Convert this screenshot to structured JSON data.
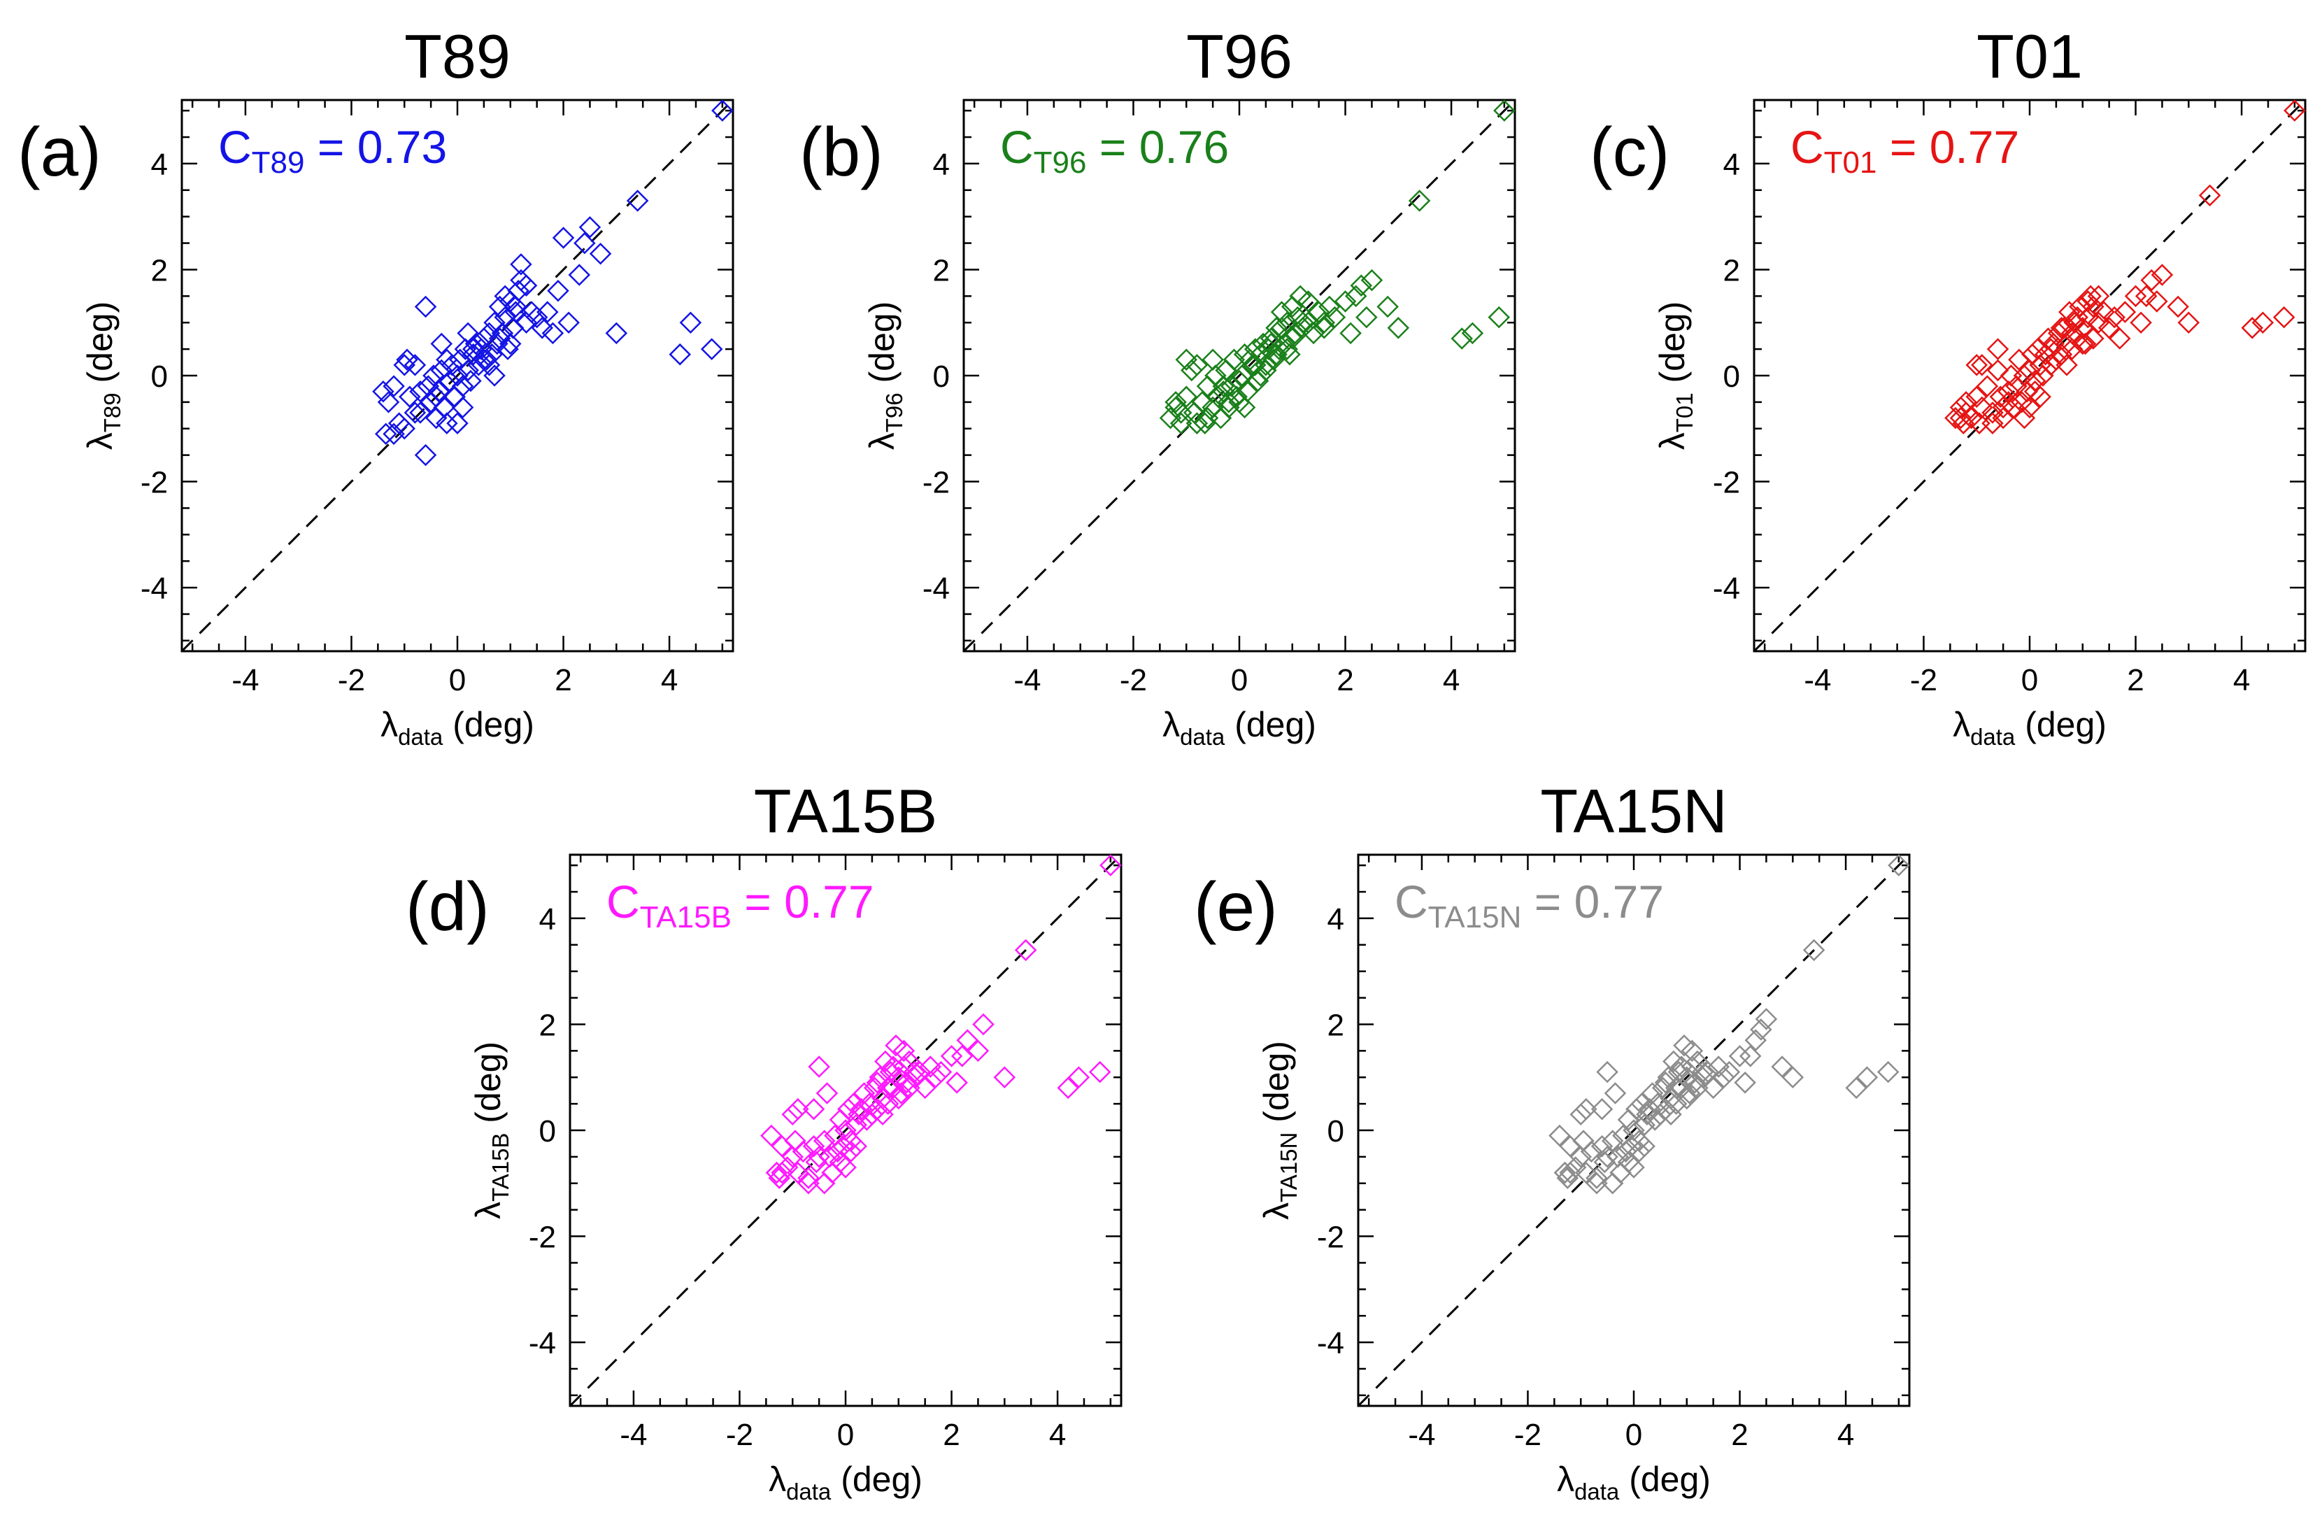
{
  "chart_data": [
    {
      "type": "scatter",
      "panel_label": "(a)",
      "title": "T89",
      "xlabel": "λ",
      "xlabel_sub": "data",
      "xlabel_unit": " (deg)",
      "ylabel": "λ",
      "ylabel_sub": "T89",
      "ylabel_unit": " (deg)",
      "corr_prefix": "C",
      "corr_sub": "T89",
      "corr_value": " = 0.73",
      "color": "#1414e6",
      "xlim": [
        -5.2,
        5.2
      ],
      "ylim": [
        -5.2,
        5.2
      ],
      "ticks": [
        -4,
        -2,
        0,
        2,
        4
      ],
      "diagonal": true,
      "x": [
        -1.4,
        -1.3,
        -1.2,
        -1.1,
        -1.0,
        -0.95,
        -0.9,
        -0.8,
        -0.7,
        -0.6,
        -0.55,
        -0.5,
        -0.45,
        -0.4,
        -0.35,
        -0.3,
        -0.25,
        -0.2,
        -0.15,
        -0.1,
        -0.05,
        0.0,
        0.05,
        0.1,
        0.15,
        0.2,
        0.25,
        0.3,
        0.35,
        0.4,
        0.45,
        0.5,
        0.55,
        0.6,
        0.65,
        0.7,
        0.75,
        0.8,
        0.85,
        0.9,
        0.95,
        1.0,
        1.05,
        1.1,
        1.15,
        1.2,
        1.3,
        1.4,
        1.5,
        1.6,
        1.7,
        1.8,
        2.0,
        2.1,
        2.3,
        2.5,
        2.7,
        3.0,
        3.4,
        4.2,
        4.4,
        4.8,
        5.0,
        -1.2,
        -1.0,
        -0.6,
        -0.4,
        -0.2,
        0.1,
        0.3,
        0.6,
        0.9,
        1.2,
        -0.8,
        -0.3,
        0.2,
        0.7,
        1.0,
        1.3,
        -1.35,
        -0.7,
        0.0,
        0.5,
        0.8,
        1.1,
        1.9,
        2.4
      ],
      "y": [
        -0.3,
        -0.5,
        -1.1,
        -0.9,
        -1.0,
        0.3,
        -0.4,
        0.2,
        -0.7,
        1.3,
        -0.2,
        -0.5,
        0.0,
        -0.8,
        -0.3,
        0.1,
        -0.6,
        0.3,
        -0.1,
        0.2,
        -0.4,
        0.0,
        0.3,
        -0.2,
        0.5,
        0.1,
        -0.1,
        0.4,
        0.6,
        0.2,
        0.5,
        0.7,
        0.3,
        0.8,
        0.4,
        1.0,
        0.6,
        1.3,
        0.8,
        1.1,
        0.5,
        1.4,
        0.9,
        1.2,
        1.6,
        2.1,
        1.0,
        1.2,
        1.1,
        0.9,
        1.2,
        0.8,
        2.6,
        1.0,
        1.9,
        2.8,
        2.3,
        0.8,
        3.3,
        0.4,
        1.0,
        0.5,
        5.0,
        -0.2,
        0.2,
        -1.5,
        -0.4,
        -0.9,
        -0.6,
        0.5,
        0.2,
        1.5,
        1.8,
        -0.7,
        0.6,
        0.8,
        0.0,
        0.6,
        1.7,
        -1.1,
        -0.3,
        -0.9,
        0.3,
        0.7,
        1.3,
        1.6,
        2.5
      ]
    },
    {
      "type": "scatter",
      "panel_label": "(b)",
      "title": "T96",
      "xlabel": "λ",
      "xlabel_sub": "data",
      "xlabel_unit": " (deg)",
      "ylabel": "λ",
      "ylabel_sub": "T96",
      "ylabel_unit": " (deg)",
      "corr_prefix": "C",
      "corr_sub": "T96",
      "corr_value": " = 0.76",
      "color": "#1a801a",
      "xlim": [
        -5.2,
        5.2
      ],
      "ylim": [
        -5.2,
        5.2
      ],
      "ticks": [
        -4,
        -2,
        0,
        2,
        4
      ],
      "diagonal": true,
      "x": [
        -1.3,
        -1.2,
        -1.1,
        -1.0,
        -0.9,
        -0.85,
        -0.8,
        -0.7,
        -0.65,
        -0.6,
        -0.5,
        -0.45,
        -0.4,
        -0.35,
        -0.3,
        -0.25,
        -0.2,
        -0.15,
        -0.1,
        -0.05,
        0.0,
        0.05,
        0.1,
        0.15,
        0.2,
        0.25,
        0.3,
        0.35,
        0.4,
        0.45,
        0.5,
        0.55,
        0.6,
        0.65,
        0.7,
        0.75,
        0.8,
        0.85,
        0.9,
        0.95,
        1.0,
        1.05,
        1.1,
        1.15,
        1.2,
        1.3,
        1.4,
        1.5,
        1.6,
        1.7,
        1.8,
        2.0,
        2.1,
        2.3,
        2.4,
        2.5,
        2.8,
        3.0,
        3.4,
        4.2,
        4.4,
        4.9,
        5.0,
        -1.2,
        -1.0,
        -0.6,
        -0.3,
        0.1,
        0.4,
        0.7,
        1.0,
        1.3,
        -0.8,
        -0.5,
        0.0,
        0.3,
        0.6,
        0.9,
        1.2,
        -1.1,
        -0.2,
        0.5,
        0.8,
        1.6,
        2.2
      ],
      "y": [
        -0.8,
        -0.6,
        -0.9,
        -0.4,
        0.1,
        -0.7,
        0.2,
        -0.5,
        -0.9,
        -0.2,
        -0.6,
        0.0,
        -0.4,
        -0.8,
        -0.3,
        0.1,
        -0.5,
        -0.2,
        0.3,
        -0.4,
        -0.1,
        0.0,
        0.4,
        -0.3,
        0.3,
        0.2,
        0.5,
        -0.1,
        0.4,
        0.6,
        0.2,
        0.5,
        0.7,
        0.3,
        0.9,
        0.5,
        1.2,
        0.6,
        1.0,
        0.4,
        1.3,
        0.8,
        1.1,
        1.5,
        0.9,
        1.0,
        0.8,
        1.2,
        0.9,
        1.3,
        1.1,
        1.4,
        0.8,
        1.7,
        1.1,
        1.8,
        1.3,
        0.9,
        3.3,
        0.7,
        0.8,
        1.1,
        5.0,
        -0.5,
        0.3,
        -0.8,
        -0.2,
        -0.6,
        0.0,
        0.4,
        0.7,
        1.4,
        -0.9,
        0.3,
        -0.5,
        0.2,
        0.6,
        0.5,
        1.0,
        -0.7,
        -0.6,
        0.1,
        0.9,
        1.0,
        1.5
      ]
    },
    {
      "type": "scatter",
      "panel_label": "(c)",
      "title": "T01",
      "xlabel": "λ",
      "xlabel_sub": "data",
      "xlabel_unit": " (deg)",
      "ylabel": "λ",
      "ylabel_sub": "T01",
      "ylabel_unit": " (deg)",
      "corr_prefix": "C",
      "corr_sub": "T01",
      "corr_value": " = 0.77",
      "color": "#e61414",
      "xlim": [
        -5.2,
        5.2
      ],
      "ylim": [
        -5.2,
        5.2
      ],
      "ticks": [
        -4,
        -2,
        0,
        2,
        4
      ],
      "diagonal": true,
      "x": [
        -1.4,
        -1.3,
        -1.25,
        -1.2,
        -1.1,
        -1.0,
        -0.95,
        -0.9,
        -0.8,
        -0.7,
        -0.6,
        -0.55,
        -0.5,
        -0.4,
        -0.35,
        -0.3,
        -0.25,
        -0.2,
        -0.15,
        -0.1,
        -0.05,
        0.0,
        0.05,
        0.1,
        0.15,
        0.2,
        0.25,
        0.3,
        0.35,
        0.4,
        0.45,
        0.5,
        0.55,
        0.6,
        0.65,
        0.7,
        0.75,
        0.8,
        0.85,
        0.9,
        0.95,
        1.0,
        1.05,
        1.1,
        1.15,
        1.2,
        1.3,
        1.4,
        1.5,
        1.6,
        1.7,
        1.8,
        2.0,
        2.1,
        2.3,
        2.4,
        2.5,
        2.8,
        3.0,
        3.4,
        4.2,
        4.4,
        4.8,
        5.0,
        -1.2,
        -1.0,
        -0.7,
        -0.4,
        -0.1,
        0.2,
        0.5,
        0.8,
        1.1,
        -0.9,
        -0.5,
        0.1,
        0.4,
        0.7,
        1.0,
        1.3,
        -1.3,
        -0.6,
        0.0,
        0.6,
        0.9,
        1.2,
        2.2
      ],
      "y": [
        -0.8,
        -0.6,
        -0.9,
        -0.5,
        -0.8,
        -0.4,
        -0.9,
        -0.6,
        -0.2,
        -0.7,
        0.1,
        -0.4,
        -0.8,
        -0.3,
        0.0,
        -0.6,
        -0.2,
        0.3,
        -0.5,
        0.0,
        -0.3,
        0.1,
        0.4,
        -0.1,
        0.5,
        0.2,
        0.0,
        0.4,
        0.7,
        0.2,
        0.6,
        0.3,
        0.8,
        0.4,
        0.9,
        0.6,
        1.2,
        0.5,
        1.0,
        0.7,
        1.3,
        0.9,
        0.6,
        1.1,
        1.5,
        1.3,
        1.0,
        1.2,
        0.9,
        1.1,
        0.7,
        1.2,
        1.5,
        1.0,
        1.8,
        1.4,
        1.9,
        1.3,
        1.0,
        3.4,
        0.9,
        1.0,
        1.1,
        5.0,
        -0.7,
        0.2,
        -0.9,
        -0.5,
        -0.8,
        -0.4,
        0.3,
        0.8,
        1.4,
        0.2,
        -0.6,
        -0.3,
        0.5,
        0.2,
        0.6,
        1.5,
        -0.8,
        0.5,
        -0.6,
        0.9,
        1.1,
        0.7,
        1.5
      ]
    },
    {
      "type": "scatter",
      "panel_label": "(d)",
      "title": "TA15B",
      "xlabel": "λ",
      "xlabel_sub": "data",
      "xlabel_unit": " (deg)",
      "ylabel": "λ",
      "ylabel_sub": "TA15B",
      "ylabel_unit": " (deg)",
      "corr_prefix": "C",
      "corr_sub": "TA15B",
      "corr_value": " = 0.77",
      "color": "#ff19ff",
      "xlim": [
        -5.2,
        5.2
      ],
      "ylim": [
        -5.2,
        5.2
      ],
      "ticks": [
        -4,
        -2,
        0,
        2,
        4
      ],
      "diagonal": true,
      "x": [
        -1.4,
        -1.3,
        -1.25,
        -1.2,
        -1.1,
        -1.0,
        -0.95,
        -0.9,
        -0.8,
        -0.7,
        -0.6,
        -0.55,
        -0.5,
        -0.4,
        -0.35,
        -0.3,
        -0.25,
        -0.2,
        -0.15,
        -0.1,
        -0.05,
        0.0,
        0.05,
        0.1,
        0.15,
        0.2,
        0.25,
        0.3,
        0.35,
        0.4,
        0.45,
        0.5,
        0.55,
        0.6,
        0.65,
        0.7,
        0.75,
        0.8,
        0.85,
        0.9,
        0.95,
        1.0,
        1.05,
        1.1,
        1.15,
        1.2,
        1.3,
        1.4,
        1.5,
        1.6,
        1.7,
        1.8,
        2.0,
        2.1,
        2.3,
        2.5,
        2.6,
        3.0,
        3.4,
        4.2,
        4.4,
        4.8,
        5.0,
        -1.2,
        -1.0,
        -0.7,
        -0.4,
        -0.1,
        0.2,
        0.5,
        0.8,
        1.1,
        -0.9,
        -0.5,
        0.1,
        0.4,
        0.7,
        1.0,
        1.3,
        -1.3,
        -0.6,
        0.0,
        0.6,
        0.9,
        1.2,
        2.2
      ],
      "y": [
        -0.1,
        -0.8,
        -0.9,
        -0.3,
        -0.7,
        -0.5,
        -0.2,
        -0.8,
        -0.4,
        -1.0,
        -0.3,
        -0.6,
        1.2,
        -0.2,
        0.7,
        -0.5,
        -0.8,
        -0.1,
        -0.4,
        0.2,
        -0.3,
        0.0,
        0.4,
        -0.2,
        0.5,
        0.1,
        0.3,
        0.4,
        0.7,
        0.2,
        0.5,
        0.3,
        0.8,
        0.4,
        1.0,
        0.6,
        1.3,
        0.5,
        1.1,
        0.8,
        1.6,
        1.0,
        0.7,
        1.2,
        0.9,
        1.3,
        1.0,
        1.1,
        0.8,
        1.2,
        1.0,
        1.1,
        1.4,
        0.9,
        1.7,
        1.5,
        2.0,
        1.0,
        3.4,
        0.8,
        1.0,
        1.1,
        5.0,
        -0.8,
        0.3,
        -0.9,
        -1.0,
        -0.6,
        -0.3,
        0.3,
        0.8,
        1.5,
        0.4,
        -0.5,
        -0.4,
        0.2,
        0.3,
        0.6,
        1.1,
        -0.8,
        0.4,
        -0.7,
        0.9,
        1.2,
        0.8,
        1.4
      ]
    },
    {
      "type": "scatter",
      "panel_label": "(e)",
      "title": "TA15N",
      "xlabel": "λ",
      "xlabel_sub": "data",
      "xlabel_unit": " (deg)",
      "ylabel": "λ",
      "ylabel_sub": "TA15N",
      "ylabel_unit": " (deg)",
      "corr_prefix": "C",
      "corr_sub": "TA15N",
      "corr_value": " = 0.77",
      "color": "#8c8c8c",
      "xlim": [
        -5.2,
        5.2
      ],
      "ylim": [
        -5.2,
        5.2
      ],
      "ticks": [
        -4,
        -2,
        0,
        2,
        4
      ],
      "diagonal": true,
      "x": [
        -1.4,
        -1.3,
        -1.25,
        -1.2,
        -1.1,
        -1.0,
        -0.95,
        -0.9,
        -0.8,
        -0.7,
        -0.6,
        -0.55,
        -0.5,
        -0.4,
        -0.35,
        -0.3,
        -0.25,
        -0.2,
        -0.15,
        -0.1,
        -0.05,
        0.0,
        0.05,
        0.1,
        0.15,
        0.2,
        0.25,
        0.3,
        0.35,
        0.4,
        0.45,
        0.5,
        0.55,
        0.6,
        0.65,
        0.7,
        0.75,
        0.8,
        0.85,
        0.9,
        0.95,
        1.0,
        1.05,
        1.1,
        1.15,
        1.2,
        1.3,
        1.4,
        1.5,
        1.6,
        1.7,
        1.8,
        2.0,
        2.1,
        2.3,
        2.4,
        2.5,
        2.8,
        3.0,
        3.4,
        4.2,
        4.4,
        4.8,
        5.0,
        -1.2,
        -1.0,
        -0.7,
        -0.4,
        -0.1,
        0.2,
        0.5,
        0.8,
        1.1,
        -0.9,
        -0.5,
        0.1,
        0.4,
        0.7,
        1.0,
        1.3,
        -1.3,
        -0.6,
        0.0,
        0.6,
        0.9,
        1.2,
        2.2
      ],
      "y": [
        -0.1,
        -0.8,
        -0.9,
        -0.3,
        -0.7,
        -0.5,
        -0.2,
        -0.8,
        -0.4,
        -1.0,
        -0.3,
        -0.6,
        1.1,
        -0.2,
        0.7,
        -0.5,
        -0.8,
        -0.1,
        -0.4,
        0.2,
        -0.3,
        0.0,
        0.4,
        -0.2,
        0.5,
        0.1,
        0.3,
        0.4,
        0.7,
        0.2,
        0.5,
        0.3,
        0.8,
        0.4,
        1.0,
        0.6,
        1.3,
        0.5,
        1.1,
        0.8,
        1.6,
        1.0,
        0.7,
        1.2,
        0.9,
        1.3,
        1.0,
        1.1,
        0.8,
        1.2,
        1.0,
        1.1,
        1.4,
        0.9,
        1.7,
        1.9,
        2.1,
        1.2,
        1.0,
        3.4,
        0.8,
        1.0,
        1.1,
        5.0,
        -0.8,
        0.3,
        -0.9,
        -1.0,
        -0.6,
        -0.3,
        0.3,
        0.8,
        1.5,
        0.4,
        -0.5,
        -0.4,
        0.2,
        0.3,
        0.6,
        1.1,
        -0.8,
        0.4,
        -0.7,
        0.9,
        1.2,
        0.8,
        1.4
      ]
    }
  ]
}
